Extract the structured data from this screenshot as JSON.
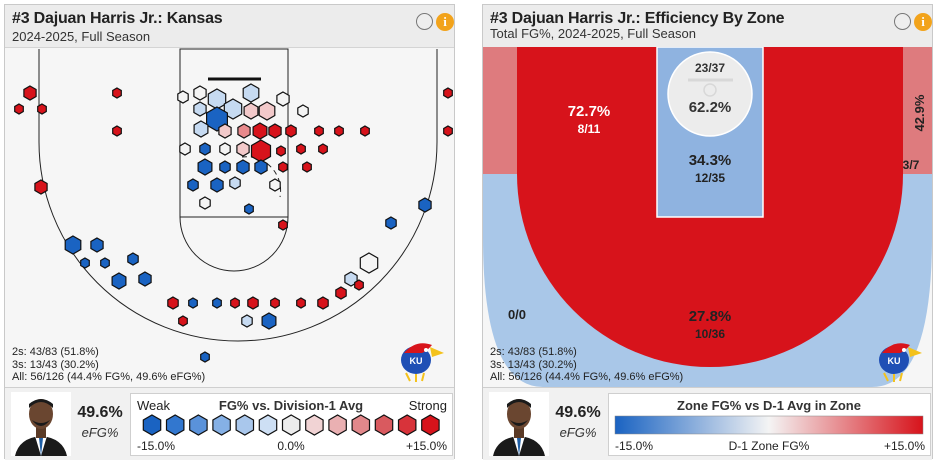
{
  "shot_chart": {
    "title": "#3 Dajuan Harris Jr.: Kansas",
    "subtitle": "2024-2025, Full Season",
    "stats": {
      "twos": "2s: 43/83 (51.8%)",
      "threes": "3s: 13/43 (30.2%)",
      "all": "All: 56/126 (44.4% FG%, 49.6% eFG%)"
    },
    "efg_value": "49.6%",
    "efg_label": "eFG%",
    "legend": {
      "weak": "Weak",
      "title": "FG% vs. Division-1 Avg",
      "strong": "Strong",
      "min": "-15.0%",
      "mid": "0.0%",
      "max": "+15.0%"
    },
    "info_icon": "i"
  },
  "zone_chart": {
    "title": "#3 Dajuan Harris Jr.: Efficiency By Zone",
    "subtitle": "Total FG%, 2024-2025, Full Season",
    "zones": {
      "rim": {
        "pct": "62.2%",
        "frac": "23/37"
      },
      "paint": {
        "pct": "34.3%",
        "frac": "12/35"
      },
      "midrange": {
        "pct": "72.7%",
        "frac": "8/11"
      },
      "corner_right": {
        "pct": "42.9%",
        "frac": "3/7"
      },
      "corner_left": {
        "frac": "0/0"
      },
      "above_break": {
        "pct": "27.8%",
        "frac": "10/36"
      }
    },
    "stats": {
      "twos": "2s: 43/83 (51.8%)",
      "threes": "3s: 13/43 (30.2%)",
      "all": "All: 56/126 (44.4% FG%, 49.6% eFG%)"
    },
    "efg_value": "49.6%",
    "efg_label": "eFG%",
    "legend": {
      "title": "Zone FG% vs D-1 Avg in Zone",
      "min": "-15.0%",
      "mid": "D-1 Zone FG%",
      "max": "+15.0%"
    },
    "info_icon": "i"
  },
  "logo_text": "KU",
  "colors": {
    "red": "#d7131b",
    "blue": "#1a63c2",
    "light_red": "#de7b7e",
    "light_blue": "#a9c7e8",
    "paint_blue": "#8fb3e0",
    "info_orange": "#f2a31b"
  }
}
